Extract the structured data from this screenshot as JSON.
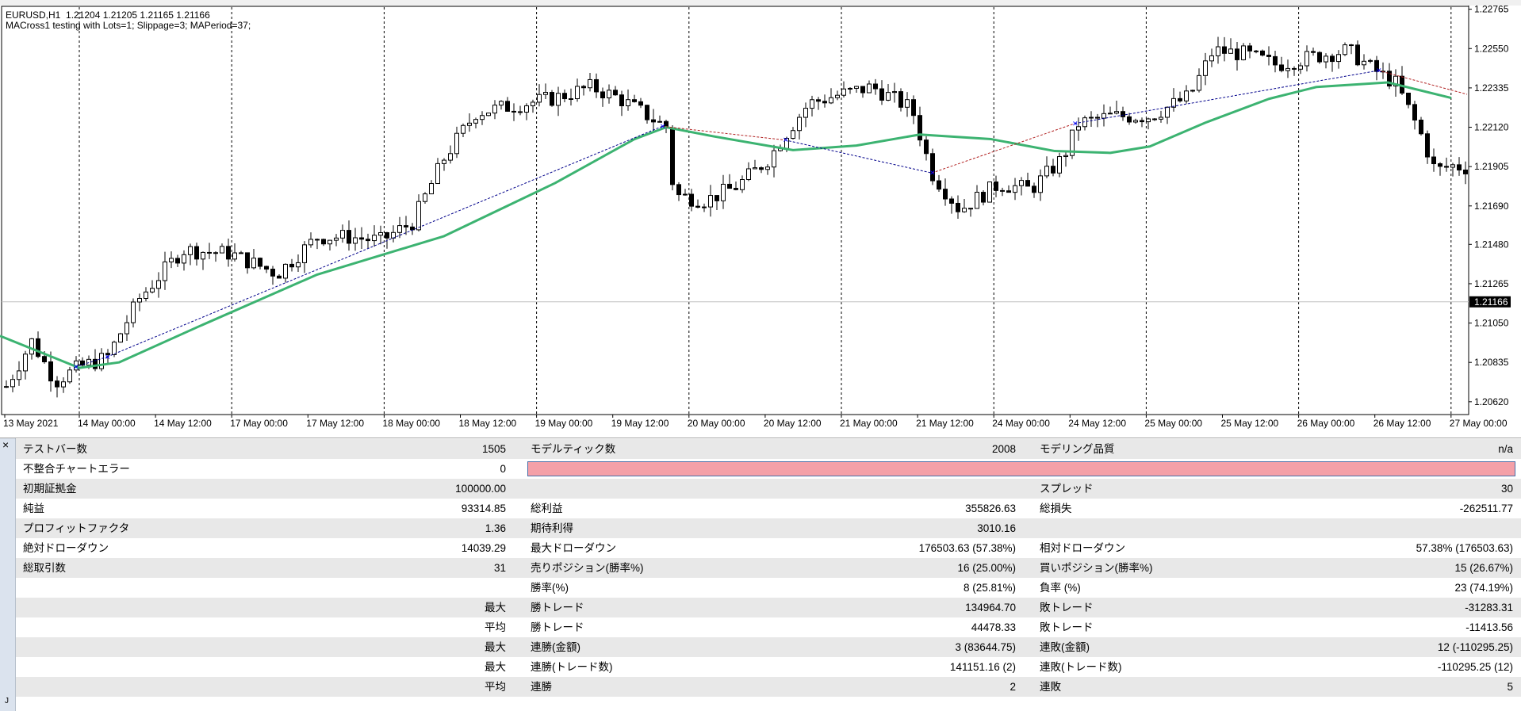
{
  "chart": {
    "header_line1": "EURUSD,H1  1.21204 1.21205 1.21165 1.21166",
    "header_line2": "MACross1 testing with Lots=1; Slippage=3; MAPeriod=37;",
    "price_ticks": [
      "1.22765",
      "1.22550",
      "1.22335",
      "1.22120",
      "1.21905",
      "1.21690",
      "1.21480",
      "1.21265",
      "1.21050",
      "1.20835",
      "1.20620"
    ],
    "price_tick_values": [
      1.22765,
      1.2255,
      1.22335,
      1.2212,
      1.21905,
      1.2169,
      1.2148,
      1.21265,
      1.2105,
      1.20835,
      1.2062
    ],
    "current_price": "1.21166",
    "current_price_value": 1.21166,
    "y_range": [
      1.2055,
      1.22785
    ],
    "time_labels": [
      "13 May 2021",
      "14 May 00:00",
      "14 May 12:00",
      "17 May 00:00",
      "17 May 12:00",
      "18 May 00:00",
      "18 May 12:00",
      "19 May 00:00",
      "19 May 12:00",
      "20 May 00:00",
      "20 May 12:00",
      "21 May 00:00",
      "21 May 12:00",
      "24 May 00:00",
      "24 May 12:00",
      "25 May 00:00",
      "25 May 12:00",
      "26 May 00:00",
      "26 May 12:00",
      "27 May 00:00"
    ],
    "colors": {
      "candle": "#000000",
      "ma": "#3cb371",
      "buy_line": "#00008b",
      "sell_line": "#b22222",
      "grid": "#000000",
      "current_price_bg": "#000000"
    },
    "ma_line": [
      [
        0,
        1.2098
      ],
      [
        100,
        1.20805
      ],
      [
        150,
        1.20835
      ],
      [
        250,
        1.2103
      ],
      [
        400,
        1.21315
      ],
      [
        560,
        1.21525
      ],
      [
        700,
        1.21815
      ],
      [
        800,
        1.22055
      ],
      [
        840,
        1.2212
      ],
      [
        900,
        1.2207
      ],
      [
        1000,
        1.21995
      ],
      [
        1080,
        1.2202
      ],
      [
        1160,
        1.2208
      ],
      [
        1250,
        1.22055
      ],
      [
        1330,
        1.2199
      ],
      [
        1400,
        1.2198
      ],
      [
        1450,
        1.22015
      ],
      [
        1520,
        1.22145
      ],
      [
        1600,
        1.22275
      ],
      [
        1660,
        1.2234
      ],
      [
        1750,
        1.22365
      ],
      [
        1830,
        1.2228
      ]
    ],
    "trades": [
      {
        "type": "buy",
        "from": [
          95,
          1.2081
        ],
        "to": [
          135,
          1.20865
        ]
      },
      {
        "type": "buy",
        "from": [
          135,
          1.20865
        ],
        "to": [
          835,
          1.22125
        ]
      },
      {
        "type": "sell",
        "from": [
          835,
          1.22125
        ],
        "to": [
          990,
          1.2205
        ]
      },
      {
        "type": "buy",
        "from": [
          990,
          1.2205
        ],
        "to": [
          1175,
          1.2187
        ]
      },
      {
        "type": "sell",
        "from": [
          1175,
          1.2187
        ],
        "to": [
          1355,
          1.2214
        ]
      },
      {
        "type": "buy",
        "from": [
          1355,
          1.2214
        ],
        "to": [
          1738,
          1.2243
        ]
      },
      {
        "type": "sell",
        "from": [
          1738,
          1.2243
        ],
        "to": [
          1850,
          1.223
        ]
      }
    ]
  },
  "report": {
    "rows": [
      {
        "shade": true,
        "l1": "テストバー数",
        "v1": "1505",
        "l2": "モデルティック数",
        "v2": "2008",
        "l3": "モデリング品質",
        "v3": "n/a"
      },
      {
        "shade": false,
        "l1": "不整合チャートエラー",
        "v1": "0",
        "l2": "",
        "v2": "",
        "l3": "",
        "v3": "",
        "error": true
      },
      {
        "shade": true,
        "l1": "初期証拠金",
        "v1": "100000.00",
        "l2": "",
        "v2": "",
        "l3": "スプレッド",
        "v3": "30"
      },
      {
        "shade": false,
        "l1": "純益",
        "v1": "93314.85",
        "l2": "総利益",
        "v2": "355826.63",
        "l3": "総損失",
        "v3": "-262511.77"
      },
      {
        "shade": true,
        "l1": "プロフィットファクタ",
        "v1": "1.36",
        "l2": "期待利得",
        "v2": "3010.16",
        "l3": "",
        "v3": ""
      },
      {
        "shade": false,
        "l1": "絶対ドローダウン",
        "v1": "14039.29",
        "l2": "最大ドローダウン",
        "v2": "176503.63 (57.38%)",
        "l3": "相対ドローダウン",
        "v3": "57.38% (176503.63)"
      },
      {
        "shade": true,
        "l1": "総取引数",
        "v1": "31",
        "l2": "売りポジション(勝率%)",
        "v2": "16 (25.00%)",
        "l3": "買いポジション(勝率%)",
        "v3": "15 (26.67%)"
      },
      {
        "shade": false,
        "l1": "",
        "v1": "",
        "l2": "勝率(%)",
        "v2": "8 (25.81%)",
        "l3": "負率 (%)",
        "v3": "23 (74.19%)"
      },
      {
        "shade": true,
        "l1": "",
        "v1": "最大",
        "l2": "勝トレード",
        "v2": "134964.70",
        "l3": "敗トレード",
        "v3": "-31283.31"
      },
      {
        "shade": false,
        "l1": "",
        "v1": "平均",
        "l2": "勝トレード",
        "v2": "44478.33",
        "l3": "敗トレード",
        "v3": "-11413.56"
      },
      {
        "shade": true,
        "l1": "",
        "v1": "最大",
        "l2": "連勝(金額)",
        "v2": "3 (83644.75)",
        "l3": "連敗(金額)",
        "v3": "12 (-110295.25)"
      },
      {
        "shade": false,
        "l1": "",
        "v1": "最大",
        "l2": "連勝(トレード数)",
        "v2": "141151.16 (2)",
        "l3": "連敗(トレード数)",
        "v3": "-110295.25 (12)"
      },
      {
        "shade": true,
        "l1": "",
        "v1": "平均",
        "l2": "連勝",
        "v2": "2",
        "l3": "連敗",
        "v3": "5"
      }
    ],
    "close_icon": "×",
    "tab_label": "J"
  }
}
